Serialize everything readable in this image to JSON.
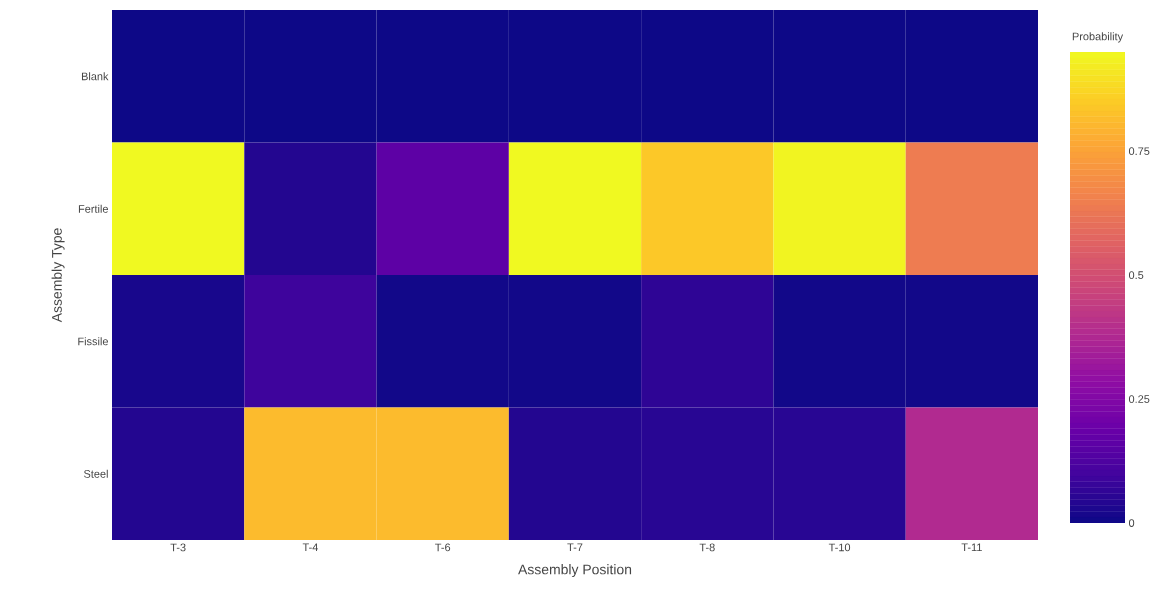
{
  "chart_data": {
    "type": "heatmap",
    "xlabel": "Assembly Position",
    "ylabel": "Assembly Type",
    "clabel": "Probability",
    "categories": [
      "T-3",
      "T-4",
      "T-6",
      "T-7",
      "T-8",
      "T-10",
      "T-11"
    ],
    "y_categories": [
      "Blank",
      "Fertile",
      "Fissile",
      "Steel"
    ],
    "cells": [
      [
        0,
        0,
        0,
        0,
        0,
        0,
        0
      ],
      [
        0.95,
        0.04,
        0.16,
        0.95,
        0.84,
        0.94,
        0.64
      ],
      [
        0.02,
        0.09,
        0.01,
        0.01,
        0.06,
        0.01,
        0.01
      ],
      [
        0.04,
        0.81,
        0.81,
        0.04,
        0.05,
        0.05,
        0.38
      ]
    ],
    "clim": [
      0,
      0.95
    ],
    "cticks": [
      0,
      0.25,
      0.5,
      0.75
    ]
  }
}
